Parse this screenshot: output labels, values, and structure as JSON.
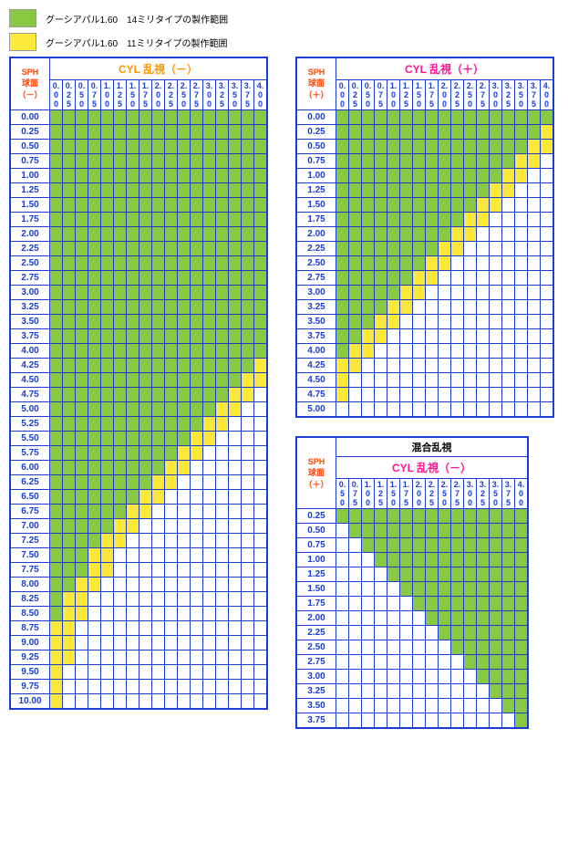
{
  "legend": {
    "green": {
      "color": "#89c942",
      "label": "グーシアパル1.60　14ミリタイプの製作範囲"
    },
    "yellow": {
      "color": "#fde93a",
      "label": "グーシアパル1.60　11ミリタイプの製作範囲"
    }
  },
  "tables": {
    "neg": {
      "title": "CYL 乱視（－）",
      "sph_label": "SPH\n球面\n（－）",
      "cyl_vals": [
        "0.00",
        "0.25",
        "0.50",
        "0.75",
        "1.00",
        "1.25",
        "1.50",
        "1.75",
        "2.00",
        "2.25",
        "2.50",
        "2.75",
        "3.00",
        "3.25",
        "3.50",
        "3.75",
        "4.00"
      ],
      "rows": [
        "0.00",
        "0.25",
        "0.50",
        "0.75",
        "1.00",
        "1.25",
        "1.50",
        "1.75",
        "2.00",
        "2.25",
        "2.50",
        "2.75",
        "3.00",
        "3.25",
        "3.50",
        "3.75",
        "4.00",
        "4.25",
        "4.50",
        "4.75",
        "5.00",
        "5.25",
        "5.50",
        "5.75",
        "6.00",
        "6.25",
        "6.50",
        "6.75",
        "7.00",
        "7.25",
        "7.50",
        "7.75",
        "8.00",
        "8.25",
        "8.50",
        "8.75",
        "9.00",
        "9.25",
        "9.50",
        "9.75",
        "10.00"
      ],
      "data": [
        "ggggggggggggggggg",
        "ggggggggggggggggg",
        "ggggggggggggggggg",
        "ggggggggggggggggg",
        "ggggggggggggggggg",
        "ggggggggggggggggg",
        "ggggggggggggggggg",
        "ggggggggggggggggg",
        "ggggggggggggggggg",
        "ggggggggggggggggg",
        "ggggggggggggggggg",
        "ggggggggggggggggg",
        "ggggggggggggggggg",
        "ggggggggggggggggg",
        "ggggggggggggggggg",
        "ggggggggggggggggg",
        "ggggggggggggggggg",
        "ggggggggggggggggy",
        "gggggggggggggggyy",
        "ggggggggggggggyy.",
        "gggggggggggggyy..",
        "ggggggggggggyy...",
        "gggggggggggyy....",
        "ggggggggggyy.....",
        "gggggggggyy......",
        "ggggggggyy.......",
        "gggggggyy........",
        "ggggggyy.........",
        "gggggyy..........",
        "ggggyy...........",
        "gggyy............",
        "gggyy............",
        "ggyy.............",
        "gyy..............",
        "gyy..............",
        "yy...............",
        "yy...............",
        "yy...............",
        "y................",
        "y................",
        "y................"
      ]
    },
    "pos": {
      "title": "CYL 乱視（＋）",
      "sph_label": "SPH\n球面\n（＋）",
      "cyl_vals": [
        "0.00",
        "0.25",
        "0.50",
        "0.75",
        "1.00",
        "1.25",
        "1.50",
        "1.75",
        "2.00",
        "2.25",
        "2.50",
        "2.75",
        "3.00",
        "3.25",
        "3.50",
        "3.75",
        "4.00"
      ],
      "rows": [
        "0.00",
        "0.25",
        "0.50",
        "0.75",
        "1.00",
        "1.25",
        "1.50",
        "1.75",
        "2.00",
        "2.25",
        "2.50",
        "2.75",
        "3.00",
        "3.25",
        "3.50",
        "3.75",
        "4.00",
        "4.25",
        "4.50",
        "4.75",
        "5.00"
      ],
      "data": [
        "ggggggggggggggggg",
        "ggggggggggggggggy",
        "gggggggggggggggyy",
        "ggggggggggggggyy.",
        "gggggggggggggyy..",
        "ggggggggggggyy...",
        "gggggggggggyy....",
        "ggggggggggyy.....",
        "gggggggggyy......",
        "ggggggggyy.......",
        "gggggggyy........",
        "ggggggyy.........",
        "gggggyy..........",
        "ggggyy...........",
        "gggyy............",
        "ggyy.............",
        "gyy..............",
        "yy...............",
        "y................",
        "y................",
        "................."
      ]
    },
    "mix": {
      "title": "混合乱視",
      "subtitle": "CYL 乱視（－）",
      "sph_label": "SPH\n球面\n（＋）",
      "cyl_vals": [
        "0.50",
        "0.75",
        "1.00",
        "1.25",
        "1.50",
        "1.75",
        "2.00",
        "2.25",
        "2.50",
        "2.75",
        "3.00",
        "3.25",
        "3.50",
        "3.75",
        "4.00"
      ],
      "rows": [
        "0.25",
        "0.50",
        "0.75",
        "1.00",
        "1.25",
        "1.50",
        "1.75",
        "2.00",
        "2.25",
        "2.50",
        "2.75",
        "3.00",
        "3.25",
        "3.50",
        "3.75"
      ],
      "data": [
        "ggggggggggggggg",
        ".gggggggggggggg",
        "..ggggggggggggg",
        "...gggggggggggg",
        "....ggggggggggg",
        ".....gggggggggg",
        "......ggggggggg",
        ".......gggggggg",
        "........ggggggg",
        ".........gggggg",
        "..........ggggg",
        "...........gggg",
        "............ggg",
        ".............gg",
        "..............g"
      ]
    }
  },
  "colors": {
    "g": "#89c942",
    "y": "#fde93a",
    "border": "#1a3bd4"
  }
}
